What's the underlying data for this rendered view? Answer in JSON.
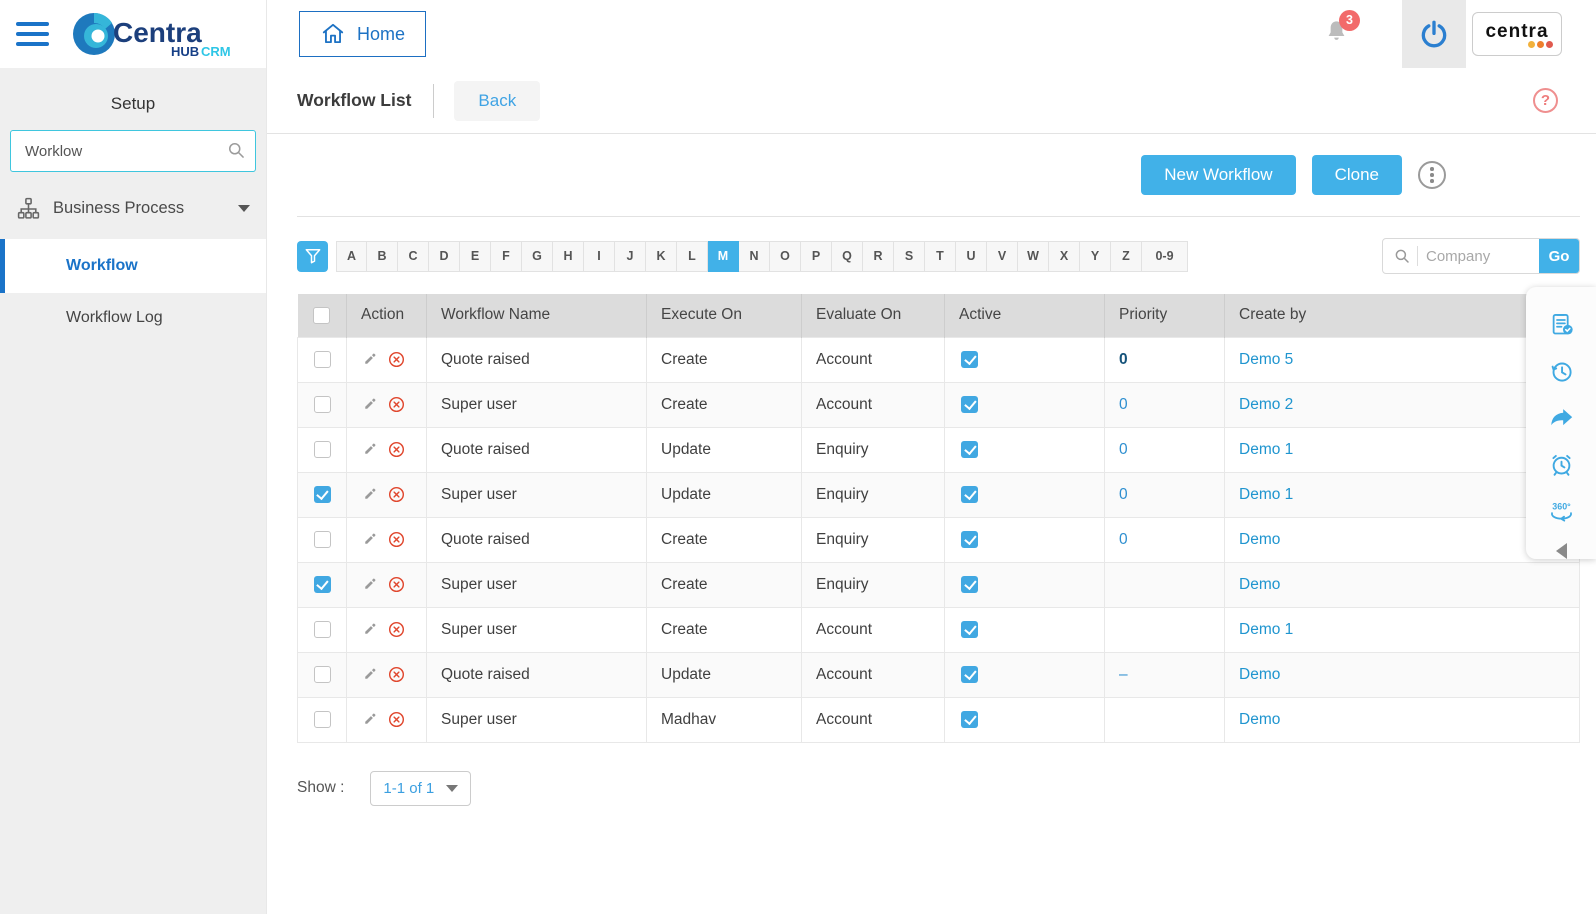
{
  "topbar": {
    "home_label": "Home",
    "notification_count": "3",
    "brand_word": "centra"
  },
  "logo": {
    "name": "Centra",
    "sub_hub": "HUB",
    "sub_crm": "CRM"
  },
  "sidebar": {
    "title": "Setup",
    "search_value": "Worklow",
    "menu_label": "Business Process",
    "items": [
      {
        "label": "Workflow",
        "active": true
      },
      {
        "label": "Workflow Log",
        "active": false
      }
    ]
  },
  "content": {
    "page_title": "Workflow List",
    "back_label": "Back",
    "new_workflow_label": "New Workflow",
    "clone_label": "Clone",
    "alphabet": [
      "A",
      "B",
      "C",
      "D",
      "E",
      "F",
      "G",
      "H",
      "I",
      "J",
      "K",
      "L",
      "M",
      "N",
      "O",
      "P",
      "Q",
      "R",
      "S",
      "T",
      "U",
      "V",
      "W",
      "X",
      "Y",
      "Z",
      "0-9"
    ],
    "selected_letter": "M",
    "company_search_placeholder": "Company",
    "go_label": "Go",
    "table": {
      "columns": [
        "Action",
        "Workflow Name",
        "Execute On",
        "Evaluate On",
        "Active",
        "Priority",
        "Create by"
      ],
      "rows": [
        {
          "selected": false,
          "name": "Quote raised",
          "execute_on": "Create",
          "evaluate_on": "Account",
          "active": true,
          "priority": "0",
          "priority_variant": "dark",
          "create_by": "Demo 5"
        },
        {
          "selected": false,
          "name": "Super user",
          "execute_on": "Create",
          "evaluate_on": "Account",
          "active": true,
          "priority": "0",
          "priority_variant": "",
          "create_by": "Demo 2"
        },
        {
          "selected": false,
          "name": "Quote raised",
          "execute_on": "Update",
          "evaluate_on": "Enquiry",
          "active": true,
          "priority": "0",
          "priority_variant": "",
          "create_by": "Demo 1"
        },
        {
          "selected": true,
          "name": "Super user",
          "execute_on": "Update",
          "evaluate_on": "Enquiry",
          "active": true,
          "priority": "0",
          "priority_variant": "",
          "create_by": "Demo 1"
        },
        {
          "selected": false,
          "name": "Quote raised",
          "execute_on": "Create",
          "evaluate_on": "Enquiry",
          "active": true,
          "priority": "0",
          "priority_variant": "",
          "create_by": "Demo"
        },
        {
          "selected": true,
          "name": "Super user",
          "execute_on": "Create",
          "evaluate_on": "Enquiry",
          "active": true,
          "priority": "",
          "priority_variant": "",
          "create_by": "Demo"
        },
        {
          "selected": false,
          "name": "Super user",
          "execute_on": "Create",
          "evaluate_on": "Account",
          "active": true,
          "priority": "",
          "priority_variant": "",
          "create_by": "Demo 1"
        },
        {
          "selected": false,
          "name": "Quote raised",
          "execute_on": "Update",
          "evaluate_on": "Account",
          "active": true,
          "priority": "–",
          "priority_variant": "",
          "create_by": "Demo"
        },
        {
          "selected": false,
          "name": "Super user",
          "execute_on": "Madhav",
          "evaluate_on": "Account",
          "active": true,
          "priority": "",
          "priority_variant": "",
          "create_by": "Demo"
        }
      ]
    },
    "pagination": {
      "show_label": "Show :",
      "range": "1-1 of 1"
    }
  },
  "right_panel": {
    "icons": [
      "tasks-icon",
      "history-icon",
      "share-icon",
      "alarm-icon",
      "view-360-icon",
      "collapse-icon"
    ]
  },
  "colors": {
    "accent_blue": "#41b1e8",
    "active_blue": "#1a73c8",
    "link_blue": "#2095cf",
    "priority_dark_blue": "#14527a",
    "badge_red": "#f26a6a",
    "delete_red": "#e0472e",
    "header_gray": "#dcdcdc",
    "sidebar_gray": "#efefef",
    "search_border_cyan": "#3fc6de"
  }
}
